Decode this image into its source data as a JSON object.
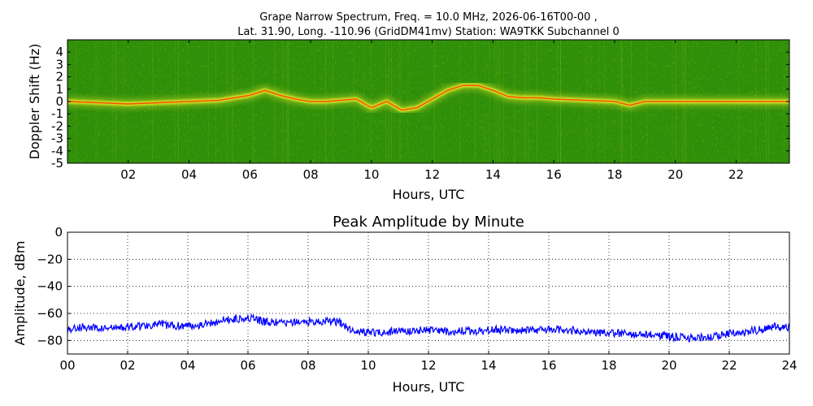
{
  "spectrogram": {
    "title_line1": "Grape Narrow Spectrum, Freq. = 10.0 MHz, 2026-06-16T00-00 ,",
    "title_line2": "Lat.  31.90, Long. -110.96 (GridDM41mv) Station: WA9TKK Subchannel 0",
    "xlabel": "Hours, UTC",
    "ylabel": "Doppler Shift (Hz)",
    "xticks": [
      "02",
      "04",
      "06",
      "08",
      "10",
      "12",
      "14",
      "16",
      "18",
      "20",
      "22"
    ],
    "yticks": [
      "4",
      "3",
      "2",
      "1",
      "0",
      "-1",
      "-2",
      "-3",
      "-4",
      "-5"
    ],
    "colors": {
      "background": "#2f8f08",
      "trace": "#f0f020",
      "core": "#ff2a00"
    }
  },
  "chart_data": [
    {
      "type": "heatmap",
      "title": "Grape Narrow Spectrum, Freq. = 10.0 MHz, 2026-06-16T00-00 , Lat.  31.90, Long. -110.96 (GridDM41mv) Station: WA9TKK Subchannel 0",
      "xlabel": "Hours, UTC",
      "ylabel": "Doppler Shift (Hz)",
      "xlim": [
        0,
        23.75
      ],
      "ylim": [
        -5,
        5
      ],
      "dominant_trace": {
        "hours": [
          0,
          1,
          2,
          3,
          4,
          5,
          5.5,
          6,
          6.5,
          7,
          7.5,
          8,
          8.5,
          9,
          9.5,
          10,
          10.5,
          11,
          11.5,
          12,
          12.5,
          13,
          13.5,
          14,
          14.5,
          15,
          15.5,
          16,
          17,
          18,
          18.5,
          19,
          20,
          21,
          22,
          23,
          23.75
        ],
        "doppler_hz": [
          0,
          -0.1,
          -0.2,
          -0.1,
          0,
          0.1,
          0.3,
          0.5,
          0.9,
          0.5,
          0.2,
          0,
          0,
          0.1,
          0.2,
          -0.5,
          0,
          -0.7,
          -0.5,
          0.2,
          0.9,
          1.3,
          1.3,
          0.9,
          0.4,
          0.3,
          0.3,
          0.2,
          0.1,
          0,
          -0.3,
          0,
          0,
          0,
          0,
          0,
          0
        ]
      }
    },
    {
      "type": "line",
      "title": "Peak Amplitude by Minute",
      "xlabel": "Hours, UTC",
      "ylabel": "Amplitude, dBm",
      "xlim": [
        0,
        24
      ],
      "ylim": [
        -90,
        0
      ],
      "xticks": [
        "00",
        "02",
        "04",
        "06",
        "08",
        "10",
        "12",
        "14",
        "16",
        "18",
        "20",
        "22",
        "24"
      ],
      "yticks": [
        "0",
        "-20",
        "-40",
        "-60",
        "-80"
      ],
      "grid": true,
      "series": [
        {
          "color": "#0000ff",
          "x": [
            0,
            0.5,
            1,
            1.5,
            2,
            2.5,
            3,
            3.5,
            4,
            4.5,
            5,
            5.5,
            6,
            6.5,
            7,
            7.5,
            8,
            8.5,
            9,
            9.5,
            10,
            10.5,
            11,
            11.5,
            12,
            12.5,
            13,
            13.5,
            14,
            14.5,
            15,
            15.5,
            16,
            16.5,
            17,
            17.5,
            18,
            18.5,
            19,
            19.5,
            20,
            20.5,
            21,
            21.5,
            22,
            22.5,
            23,
            23.5,
            24
          ],
          "values": [
            -72,
            -70,
            -71,
            -71,
            -70,
            -69,
            -68,
            -69,
            -69,
            -68,
            -66,
            -64,
            -63,
            -66,
            -67,
            -67,
            -66,
            -66,
            -66,
            -73,
            -74,
            -74,
            -73,
            -73,
            -72,
            -73,
            -73,
            -73,
            -72,
            -72,
            -73,
            -72,
            -72,
            -72,
            -73,
            -74,
            -74,
            -75,
            -76,
            -76,
            -77,
            -78,
            -78,
            -77,
            -75,
            -74,
            -72,
            -70,
            -70
          ]
        }
      ]
    }
  ]
}
